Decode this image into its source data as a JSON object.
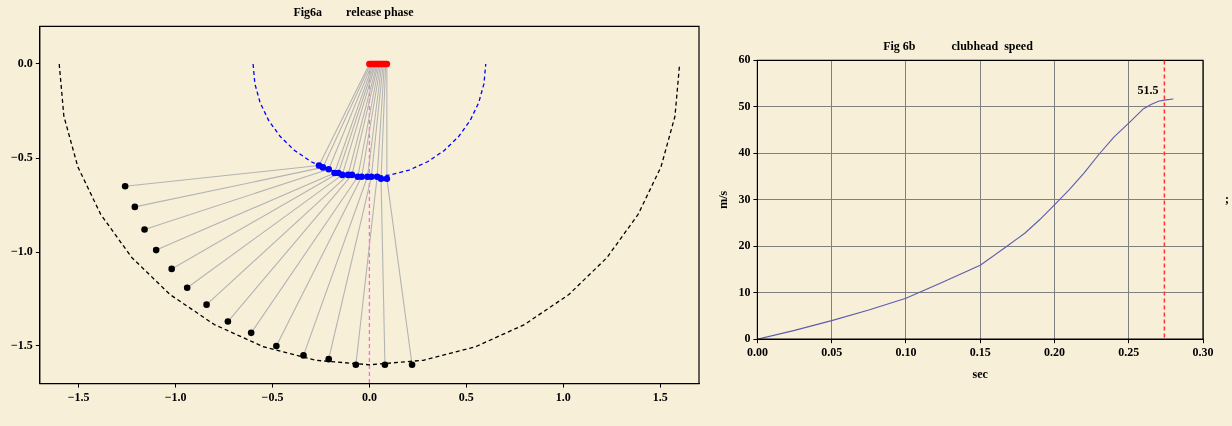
{
  "chart_data": [
    {
      "type": "scatter",
      "title": "Fig6a        release phase",
      "xlim": [
        -1.7,
        1.7
      ],
      "ylim": [
        -1.7,
        0.2
      ],
      "xticks": [
        {
          "value": -1.5,
          "label": "−1.5"
        },
        {
          "value": -1,
          "label": "−1.0"
        },
        {
          "value": -0.5,
          "label": "−0.5"
        },
        {
          "value": 0,
          "label": "0.0"
        },
        {
          "value": 0.5,
          "label": "0.5"
        },
        {
          "value": 1,
          "label": "1.0"
        },
        {
          "value": 1.5,
          "label": "1.5"
        }
      ],
      "yticks": [
        {
          "value": 0,
          "label": "0.0"
        },
        {
          "value": -0.5,
          "label": "−0.5"
        },
        {
          "value": -1,
          "label": "−1.0"
        },
        {
          "value": -1.5,
          "label": "−1.5"
        }
      ],
      "series": [
        {
          "type": "line",
          "color": "#000000",
          "line_style": "dashed",
          "marker": "none",
          "x": [
            -1.6,
            -1.576,
            -1.504,
            -1.386,
            -1.226,
            -1.029,
            -0.8,
            -0.547,
            -0.278,
            0,
            0.278,
            0.547,
            0.8,
            1.029,
            1.226,
            1.386,
            1.504,
            1.576,
            1.6
          ],
          "values": [
            0,
            -0.278,
            -0.547,
            -0.8,
            -1.029,
            -1.226,
            -1.386,
            -1.504,
            -1.576,
            -1.6,
            -1.576,
            -1.504,
            -1.386,
            -1.226,
            -1.029,
            -0.8,
            -0.547,
            -0.278,
            0
          ]
        },
        {
          "type": "line",
          "color": "#0000ff",
          "line_style": "dashed",
          "marker": "none",
          "x": [
            -0.6,
            -0.591,
            -0.564,
            -0.52,
            -0.46,
            -0.386,
            -0.3,
            -0.205,
            -0.104,
            0,
            0.104,
            0.205,
            0.3,
            0.386,
            0.46,
            0.52,
            0.564,
            0.591,
            0.6
          ],
          "values": [
            0,
            -0.104,
            -0.205,
            -0.3,
            -0.386,
            -0.46,
            -0.52,
            -0.564,
            -0.591,
            -0.6,
            -0.591,
            -0.564,
            -0.52,
            -0.46,
            -0.386,
            -0.3,
            -0.205,
            -0.104,
            0
          ]
        },
        {
          "type": "line",
          "color": "#b3b3b3",
          "marker": "none",
          "x": [
            0,
            -0.26,
            -1.26
          ],
          "values": [
            0,
            -0.54,
            -0.65
          ]
        },
        {
          "type": "line",
          "color": "#b3b3b3",
          "marker": "none",
          "x": [
            0.006,
            -0.24,
            -1.21
          ],
          "values": [
            0,
            -0.55,
            -0.76
          ]
        },
        {
          "type": "line",
          "color": "#b3b3b3",
          "marker": "none",
          "x": [
            0.013,
            -0.21,
            -1.16
          ],
          "values": [
            0,
            -0.56,
            -0.88
          ]
        },
        {
          "type": "line",
          "color": "#b3b3b3",
          "marker": "none",
          "x": [
            0.019,
            -0.18,
            -1.1
          ],
          "values": [
            0,
            -0.58,
            -0.99
          ]
        },
        {
          "type": "line",
          "color": "#b3b3b3",
          "marker": "none",
          "x": [
            0.026,
            -0.16,
            -1.02
          ],
          "values": [
            0,
            -0.58,
            -1.09
          ]
        },
        {
          "type": "line",
          "color": "#b3b3b3",
          "marker": "none",
          "x": [
            0.032,
            -0.14,
            -0.94
          ],
          "values": [
            0,
            -0.59,
            -1.19
          ]
        },
        {
          "type": "line",
          "color": "#b3b3b3",
          "marker": "none",
          "x": [
            0.039,
            -0.11,
            -0.84
          ],
          "values": [
            0,
            -0.59,
            -1.28
          ]
        },
        {
          "type": "line",
          "color": "#b3b3b3",
          "marker": "none",
          "x": [
            0.045,
            -0.09,
            -0.73
          ],
          "values": [
            0,
            -0.59,
            -1.37
          ]
        },
        {
          "type": "line",
          "color": "#b3b3b3",
          "marker": "none",
          "x": [
            0.051,
            -0.06,
            -0.61
          ],
          "values": [
            0,
            -0.6,
            -1.43
          ]
        },
        {
          "type": "line",
          "color": "#b3b3b3",
          "marker": "none",
          "x": [
            0.058,
            -0.04,
            -0.48
          ],
          "values": [
            0,
            -0.6,
            -1.5
          ]
        },
        {
          "type": "line",
          "color": "#b3b3b3",
          "marker": "none",
          "x": [
            0.064,
            -0.01,
            -0.34
          ],
          "values": [
            0,
            -0.6,
            -1.55
          ]
        },
        {
          "type": "line",
          "color": "#b3b3b3",
          "marker": "none",
          "x": [
            0.071,
            0.01,
            -0.21
          ],
          "values": [
            0,
            -0.6,
            -1.57
          ]
        },
        {
          "type": "line",
          "color": "#b3b3b3",
          "marker": "none",
          "x": [
            0.077,
            0.04,
            -0.07
          ],
          "values": [
            0,
            -0.6,
            -1.6
          ]
        },
        {
          "type": "line",
          "color": "#b3b3b3",
          "marker": "none",
          "x": [
            0.084,
            0.06,
            0.08
          ],
          "values": [
            0,
            -0.61,
            -1.6
          ]
        },
        {
          "type": "line",
          "color": "#b3b3b3",
          "marker": "none",
          "x": [
            0.09,
            0.09,
            0.22
          ],
          "values": [
            0,
            -0.61,
            -1.6
          ]
        },
        {
          "type": "line",
          "color": "#ff66e6",
          "line_style": "dashed",
          "marker": "none",
          "x": [
            0,
            0
          ],
          "values": [
            0,
            -1.7
          ]
        },
        {
          "type": "scatter",
          "color": "#ff0000",
          "marker": "circle",
          "x": [
            0,
            0.006,
            0.013,
            0.019,
            0.026,
            0.032,
            0.039,
            0.045,
            0.051,
            0.058,
            0.064,
            0.071,
            0.077,
            0.084,
            0.09
          ],
          "values": [
            0,
            0,
            0,
            0,
            0,
            0,
            0,
            0,
            0,
            0,
            0,
            0,
            0,
            0,
            0
          ]
        },
        {
          "type": "scatter",
          "color": "#0000ff",
          "marker": "circle",
          "x": [
            -0.26,
            -0.24,
            -0.21,
            -0.18,
            -0.16,
            -0.14,
            -0.11,
            -0.09,
            -0.06,
            -0.04,
            -0.01,
            0.01,
            0.04,
            0.06,
            0.09
          ],
          "values": [
            -0.54,
            -0.55,
            -0.56,
            -0.58,
            -0.58,
            -0.59,
            -0.59,
            -0.59,
            -0.6,
            -0.6,
            -0.6,
            -0.6,
            -0.6,
            -0.61,
            -0.61
          ]
        },
        {
          "type": "scatter",
          "color": "#000000",
          "marker": "circle",
          "x": [
            -1.26,
            -1.21,
            -1.16,
            -1.1,
            -1.02,
            -0.94,
            -0.84,
            -0.73,
            -0.61,
            -0.48,
            -0.34,
            -0.21,
            -0.07,
            0.08,
            0.22
          ],
          "values": [
            -0.65,
            -0.76,
            -0.88,
            -0.99,
            -1.09,
            -1.19,
            -1.28,
            -1.37,
            -1.43,
            -1.5,
            -1.55,
            -1.57,
            -1.6,
            -1.6,
            -1.6
          ]
        }
      ]
    },
    {
      "type": "line",
      "title": "Fig 6b            clubhead  speed",
      "xlabel": "sec",
      "ylabel": "m/s",
      "xlim": [
        0,
        0.3
      ],
      "ylim": [
        0,
        60
      ],
      "xticks": [
        {
          "value": 0,
          "label": "0.00"
        },
        {
          "value": 0.05,
          "label": "0.05"
        },
        {
          "value": 0.1,
          "label": "0.10"
        },
        {
          "value": 0.15,
          "label": "0.15"
        },
        {
          "value": 0.2,
          "label": "0.20"
        },
        {
          "value": 0.25,
          "label": "0.25"
        },
        {
          "value": 0.3,
          "label": "0.30"
        }
      ],
      "yticks": [
        0,
        10,
        20,
        30,
        40,
        50,
        60
      ],
      "grid": true,
      "marker": "none",
      "series": [
        {
          "color": "#5c5cae",
          "x": [
            0,
            0.025,
            0.05,
            0.075,
            0.1,
            0.125,
            0.15,
            0.168,
            0.18,
            0.19,
            0.2,
            0.21,
            0.22,
            0.23,
            0.24,
            0.25,
            0.26,
            0.265,
            0.27,
            0.275,
            0.28
          ],
          "values": [
            0,
            1.9,
            4,
            6.3,
            8.8,
            12.3,
            15.9,
            20,
            22.8,
            25.7,
            28.9,
            32.2,
            35.8,
            39.8,
            43.5,
            46.5,
            49.6,
            50.5,
            51.2,
            51.5,
            51.7
          ]
        }
      ],
      "ref_lines": [
        {
          "axis": "x",
          "value": 0.274,
          "color": "#ff3333",
          "line_style": "dashed"
        }
      ],
      "annotations": [
        {
          "text": "51.5",
          "x": 0.274,
          "y": 51.5
        },
        ";"
      ]
    }
  ]
}
